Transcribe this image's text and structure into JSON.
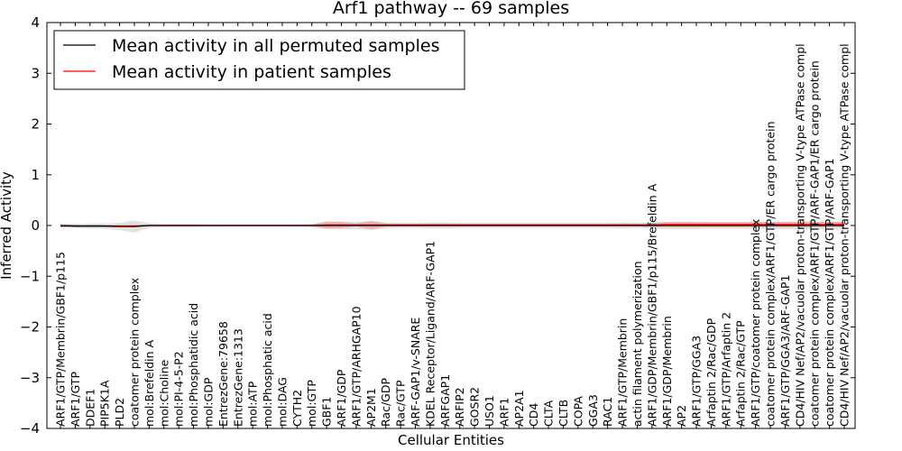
{
  "chart_data": {
    "type": "line",
    "title": "Arf1 pathway -- 69 samples",
    "xlabel": "Cellular Entities",
    "ylabel": "Inferred Activity",
    "ylim": [
      -4,
      4
    ],
    "yticks": [
      "−4",
      "−3",
      "−2",
      "−1",
      "0",
      "1",
      "2",
      "3",
      "4"
    ],
    "legend_position": "top-left",
    "categories": [
      "ARF1/GTP/Membrin/GBF1/p115",
      "ARF1/GTP",
      "DDEF1",
      "PIP5K1A",
      "PLD2",
      "coatomer protein complex",
      "mol:Brefeldin A",
      "mol:Choline",
      "mol:PI-4-5-P2",
      "mol:Phosphatidic acid",
      "mol:GDP",
      "EntrezGene:79658",
      "EntrezGene:1313",
      "mol:ATP",
      "mol:Phosphatic acid",
      "mol:DAG",
      "CYTH2",
      "mol:GTP",
      "GBF1",
      "ARF1/GDP",
      "ARF1/GTP/ARHGAP10",
      "AP2M1",
      "Rac/GDP",
      "Rac/GTP",
      "ARF-GAP1/v-SNARE",
      "KDEL Receptor/Ligand/ARF-GAP1",
      "ARFGAP1",
      "ARFIP2",
      "GOSR2",
      "USO1",
      "ARF1",
      "AP2A1",
      "CD4",
      "CLTA",
      "CLTB",
      "COPA",
      "GGA3",
      "RAC1",
      "ARF1/GTP/Membrin",
      "actin filament polymerization",
      "ARF1/GDP/Membrin/GBF1/p115/Brefeldin A",
      "ARF1/GDP/Membrin",
      "AP2",
      "ARF1/GTP/GGA3",
      "Arfaptin 2/Rac/GDP",
      "ARF1/GTP/Arfaptin 2",
      "Arfaptin 2/Rac/GTP",
      "ARF1/GTP/coatomer protein complex",
      "coatomer protein complex/ARF1/GTP/ER cargo protein",
      "ARF1/GTP/GGA3/ARF-GAP1",
      "CD4/HIV Nef/AP2/vacuolar proton-transporting V-type ATPase compl",
      "coatomer protein complex/ARF1/GTP/ARF-GAP1/ER cargo protein",
      "coatomer protein complex/ARF1/GTP/ARF-GAP1",
      "CD4/HIV Nef/AP2/vacuolar proton-transporting V-type ATPase compl"
    ],
    "series": [
      {
        "name": "Mean activity in all permuted samples",
        "color": "#000000",
        "values": [
          0.0,
          -0.01,
          -0.01,
          -0.01,
          -0.02,
          -0.02,
          0.0,
          0.0,
          0.0,
          0.0,
          0.0,
          0.0,
          0.0,
          0.0,
          0.0,
          0.0,
          0.0,
          0.0,
          0.0,
          0.0,
          0.0,
          0.0,
          0.0,
          0.0,
          0.0,
          0.0,
          0.0,
          0.0,
          0.0,
          0.0,
          0.0,
          0.0,
          0.0,
          0.0,
          0.0,
          0.0,
          0.0,
          0.0,
          0.0,
          0.0,
          0.0,
          0.0,
          0.0,
          0.0,
          0.0,
          0.0,
          0.0,
          0.0,
          0.0,
          0.0,
          0.0,
          0.0,
          0.0,
          0.0
        ],
        "band": [
          0.04,
          0.04,
          0.05,
          0.05,
          0.07,
          0.12,
          0.05,
          0.03,
          0.03,
          0.03,
          0.02,
          0.02,
          0.02,
          0.02,
          0.02,
          0.02,
          0.02,
          0.03,
          0.07,
          0.08,
          0.07,
          0.09,
          0.06,
          0.05,
          0.05,
          0.06,
          0.06,
          0.05,
          0.05,
          0.05,
          0.05,
          0.05,
          0.05,
          0.05,
          0.05,
          0.05,
          0.05,
          0.05,
          0.06,
          0.05,
          0.06,
          0.07,
          0.07,
          0.07,
          0.06,
          0.06,
          0.06,
          0.07,
          0.07,
          0.07,
          0.08,
          0.08,
          0.08,
          0.08
        ]
      },
      {
        "name": "Mean activity in patient samples",
        "color": "#ff0000",
        "values": [
          -0.01,
          -0.01,
          -0.01,
          -0.01,
          -0.01,
          -0.01,
          0.0,
          0.0,
          0.0,
          0.0,
          0.0,
          0.0,
          0.0,
          0.0,
          0.0,
          0.0,
          0.0,
          0.0,
          0.01,
          0.01,
          0.01,
          0.01,
          0.01,
          0.01,
          0.01,
          0.01,
          0.01,
          0.01,
          0.01,
          0.01,
          0.01,
          0.01,
          0.01,
          0.01,
          0.01,
          0.01,
          0.01,
          0.01,
          0.01,
          0.01,
          0.01,
          0.02,
          0.02,
          0.02,
          0.02,
          0.02,
          0.02,
          0.02,
          0.02,
          0.02,
          0.02,
          0.02,
          0.02,
          0.02
        ],
        "band": [
          0.02,
          0.02,
          0.02,
          0.02,
          0.02,
          0.02,
          0.02,
          0.02,
          0.02,
          0.02,
          0.02,
          0.02,
          0.02,
          0.02,
          0.02,
          0.02,
          0.02,
          0.02,
          0.07,
          0.06,
          0.03,
          0.08,
          0.03,
          0.03,
          0.03,
          0.03,
          0.03,
          0.03,
          0.03,
          0.03,
          0.03,
          0.03,
          0.03,
          0.03,
          0.03,
          0.03,
          0.03,
          0.03,
          0.03,
          0.03,
          0.04,
          0.05,
          0.05,
          0.05,
          0.05,
          0.05,
          0.05,
          0.05,
          0.05,
          0.05,
          0.05,
          0.05,
          0.05,
          0.05
        ]
      }
    ]
  }
}
